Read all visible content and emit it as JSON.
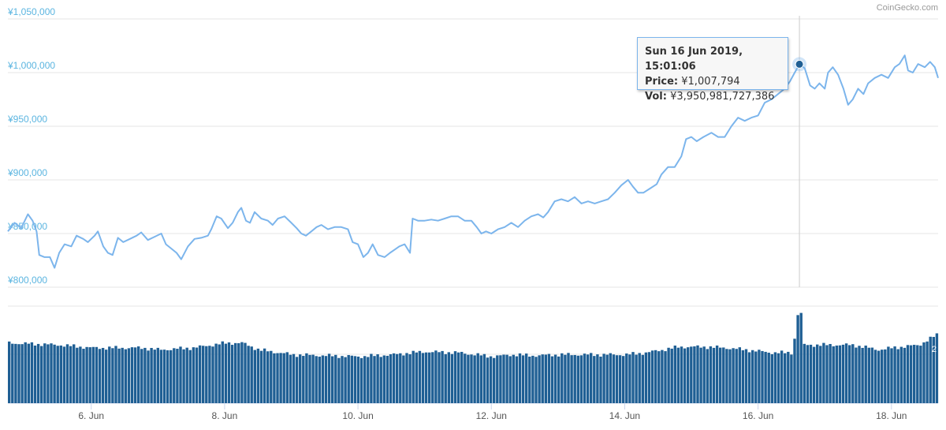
{
  "credit": "CoinGecko.com",
  "tooltip": {
    "date": "Sun 16 Jun 2019, 15:01:06",
    "price_label": "Price:",
    "price_value": "¥1,007,794",
    "vol_label": "Vol:",
    "vol_value": "¥3,950,981,727,386"
  },
  "colors": {
    "line": "#7cb5ec",
    "bar": "#1f5f94",
    "axis_text": "#5bb5e0",
    "grid": "#e6e6e6",
    "marker": "#1f5f94"
  },
  "chart_data": {
    "type": "line",
    "y_ticks": [
      "¥1,050,000",
      "¥1,000,000",
      "¥950,000",
      "¥900,000",
      "¥850,000",
      "¥800,000"
    ],
    "y_tick_values": [
      1050000,
      1000000,
      950000,
      900000,
      850000,
      800000
    ],
    "ylim": [
      800000,
      1050000
    ],
    "x_ticks": [
      "6. Jun",
      "8. Jun",
      "10. Jun",
      "12. Jun",
      "14. Jun",
      "16. Jun",
      "18. Jun"
    ],
    "x_tick_days": [
      6,
      8,
      10,
      12,
      14,
      16,
      18
    ],
    "xlim_days": [
      4.75,
      18.7
    ],
    "volume_label": "2",
    "highlight": {
      "day": 16.62,
      "price": 1007794
    },
    "price": [
      [
        4.75,
        852000
      ],
      [
        4.85,
        860000
      ],
      [
        4.95,
        855000
      ],
      [
        5.05,
        868000
      ],
      [
        5.12,
        862000
      ],
      [
        5.18,
        852000
      ],
      [
        5.22,
        830000
      ],
      [
        5.3,
        828000
      ],
      [
        5.38,
        828000
      ],
      [
        5.45,
        818000
      ],
      [
        5.52,
        832000
      ],
      [
        5.6,
        840000
      ],
      [
        5.7,
        838000
      ],
      [
        5.78,
        848000
      ],
      [
        5.88,
        845000
      ],
      [
        5.95,
        842000
      ],
      [
        6.05,
        848000
      ],
      [
        6.1,
        852000
      ],
      [
        6.18,
        838000
      ],
      [
        6.25,
        832000
      ],
      [
        6.32,
        830000
      ],
      [
        6.4,
        846000
      ],
      [
        6.48,
        842000
      ],
      [
        6.58,
        845000
      ],
      [
        6.68,
        848000
      ],
      [
        6.75,
        851000
      ],
      [
        6.85,
        844000
      ],
      [
        6.95,
        847000
      ],
      [
        7.05,
        850000
      ],
      [
        7.12,
        840000
      ],
      [
        7.2,
        836000
      ],
      [
        7.28,
        832000
      ],
      [
        7.35,
        826000
      ],
      [
        7.45,
        838000
      ],
      [
        7.55,
        845000
      ],
      [
        7.65,
        846000
      ],
      [
        7.75,
        848000
      ],
      [
        7.8,
        854000
      ],
      [
        7.88,
        866000
      ],
      [
        7.95,
        864000
      ],
      [
        8.05,
        855000
      ],
      [
        8.12,
        860000
      ],
      [
        8.2,
        870000
      ],
      [
        8.25,
        874000
      ],
      [
        8.32,
        862000
      ],
      [
        8.38,
        860000
      ],
      [
        8.45,
        870000
      ],
      [
        8.55,
        864000
      ],
      [
        8.65,
        862000
      ],
      [
        8.72,
        858000
      ],
      [
        8.8,
        864000
      ],
      [
        8.9,
        866000
      ],
      [
        9.0,
        860000
      ],
      [
        9.08,
        855000
      ],
      [
        9.15,
        850000
      ],
      [
        9.22,
        848000
      ],
      [
        9.3,
        852000
      ],
      [
        9.38,
        856000
      ],
      [
        9.45,
        858000
      ],
      [
        9.55,
        854000
      ],
      [
        9.65,
        856000
      ],
      [
        9.75,
        856000
      ],
      [
        9.85,
        854000
      ],
      [
        9.92,
        842000
      ],
      [
        10.0,
        840000
      ],
      [
        10.08,
        828000
      ],
      [
        10.15,
        832000
      ],
      [
        10.22,
        840000
      ],
      [
        10.3,
        830000
      ],
      [
        10.4,
        828000
      ],
      [
        10.48,
        832000
      ],
      [
        10.55,
        835000
      ],
      [
        10.62,
        838000
      ],
      [
        10.7,
        840000
      ],
      [
        10.78,
        832000
      ],
      [
        10.82,
        864000
      ],
      [
        10.9,
        862000
      ],
      [
        11.0,
        862000
      ],
      [
        11.1,
        863000
      ],
      [
        11.2,
        862000
      ],
      [
        11.3,
        864000
      ],
      [
        11.4,
        866000
      ],
      [
        11.5,
        866000
      ],
      [
        11.6,
        862000
      ],
      [
        11.7,
        862000
      ],
      [
        11.78,
        856000
      ],
      [
        11.85,
        850000
      ],
      [
        11.92,
        852000
      ],
      [
        12.0,
        850000
      ],
      [
        12.1,
        854000
      ],
      [
        12.2,
        856000
      ],
      [
        12.3,
        860000
      ],
      [
        12.4,
        856000
      ],
      [
        12.5,
        862000
      ],
      [
        12.6,
        866000
      ],
      [
        12.7,
        868000
      ],
      [
        12.78,
        865000
      ],
      [
        12.85,
        870000
      ],
      [
        12.95,
        880000
      ],
      [
        13.05,
        882000
      ],
      [
        13.15,
        880000
      ],
      [
        13.25,
        884000
      ],
      [
        13.35,
        878000
      ],
      [
        13.45,
        880000
      ],
      [
        13.55,
        878000
      ],
      [
        13.65,
        880000
      ],
      [
        13.75,
        882000
      ],
      [
        13.85,
        888000
      ],
      [
        13.95,
        895000
      ],
      [
        14.05,
        900000
      ],
      [
        14.12,
        894000
      ],
      [
        14.2,
        888000
      ],
      [
        14.28,
        888000
      ],
      [
        14.38,
        892000
      ],
      [
        14.48,
        896000
      ],
      [
        14.55,
        905000
      ],
      [
        14.65,
        912000
      ],
      [
        14.75,
        912000
      ],
      [
        14.85,
        922000
      ],
      [
        14.92,
        938000
      ],
      [
        15.0,
        940000
      ],
      [
        15.08,
        936000
      ],
      [
        15.18,
        940000
      ],
      [
        15.3,
        944000
      ],
      [
        15.4,
        940000
      ],
      [
        15.5,
        940000
      ],
      [
        15.6,
        950000
      ],
      [
        15.7,
        958000
      ],
      [
        15.8,
        955000
      ],
      [
        15.9,
        958000
      ],
      [
        16.0,
        960000
      ],
      [
        16.1,
        972000
      ],
      [
        16.2,
        975000
      ],
      [
        16.3,
        980000
      ],
      [
        16.4,
        985000
      ],
      [
        16.48,
        992000
      ],
      [
        16.55,
        1000000
      ],
      [
        16.62,
        1007794
      ],
      [
        16.7,
        1004000
      ],
      [
        16.78,
        988000
      ],
      [
        16.85,
        985000
      ],
      [
        16.92,
        990000
      ],
      [
        17.0,
        985000
      ],
      [
        17.05,
        1000000
      ],
      [
        17.12,
        1005000
      ],
      [
        17.2,
        998000
      ],
      [
        17.28,
        985000
      ],
      [
        17.35,
        970000
      ],
      [
        17.42,
        975000
      ],
      [
        17.5,
        985000
      ],
      [
        17.58,
        980000
      ],
      [
        17.65,
        990000
      ],
      [
        17.75,
        995000
      ],
      [
        17.85,
        998000
      ],
      [
        17.95,
        995000
      ],
      [
        18.05,
        1005000
      ],
      [
        18.12,
        1008000
      ],
      [
        18.2,
        1016000
      ],
      [
        18.25,
        1002000
      ],
      [
        18.32,
        1000000
      ],
      [
        18.4,
        1008000
      ],
      [
        18.5,
        1005000
      ],
      [
        18.58,
        1010000
      ],
      [
        18.65,
        1005000
      ],
      [
        18.7,
        995000
      ]
    ],
    "volume_level": [
      [
        4.75,
        0.62
      ],
      [
        5.5,
        0.6
      ],
      [
        6.0,
        0.57
      ],
      [
        6.75,
        0.57
      ],
      [
        7.0,
        0.55
      ],
      [
        7.5,
        0.57
      ],
      [
        8.0,
        0.62
      ],
      [
        8.25,
        0.62
      ],
      [
        8.5,
        0.55
      ],
      [
        9.0,
        0.5
      ],
      [
        9.5,
        0.49
      ],
      [
        10.0,
        0.48
      ],
      [
        10.5,
        0.5
      ],
      [
        10.8,
        0.52
      ],
      [
        11.0,
        0.53
      ],
      [
        11.5,
        0.52
      ],
      [
        12.0,
        0.48
      ],
      [
        12.3,
        0.5
      ],
      [
        12.6,
        0.49
      ],
      [
        13.0,
        0.5
      ],
      [
        13.5,
        0.5
      ],
      [
        14.0,
        0.5
      ],
      [
        14.3,
        0.52
      ],
      [
        14.8,
        0.58
      ],
      [
        15.2,
        0.58
      ],
      [
        15.5,
        0.57
      ],
      [
        15.8,
        0.55
      ],
      [
        16.2,
        0.52
      ],
      [
        16.5,
        0.52
      ],
      [
        16.58,
        0.93
      ],
      [
        16.65,
        0.6
      ],
      [
        17.0,
        0.6
      ],
      [
        17.4,
        0.6
      ],
      [
        17.8,
        0.55
      ],
      [
        18.0,
        0.57
      ],
      [
        18.4,
        0.6
      ],
      [
        18.7,
        0.72
      ]
    ]
  }
}
